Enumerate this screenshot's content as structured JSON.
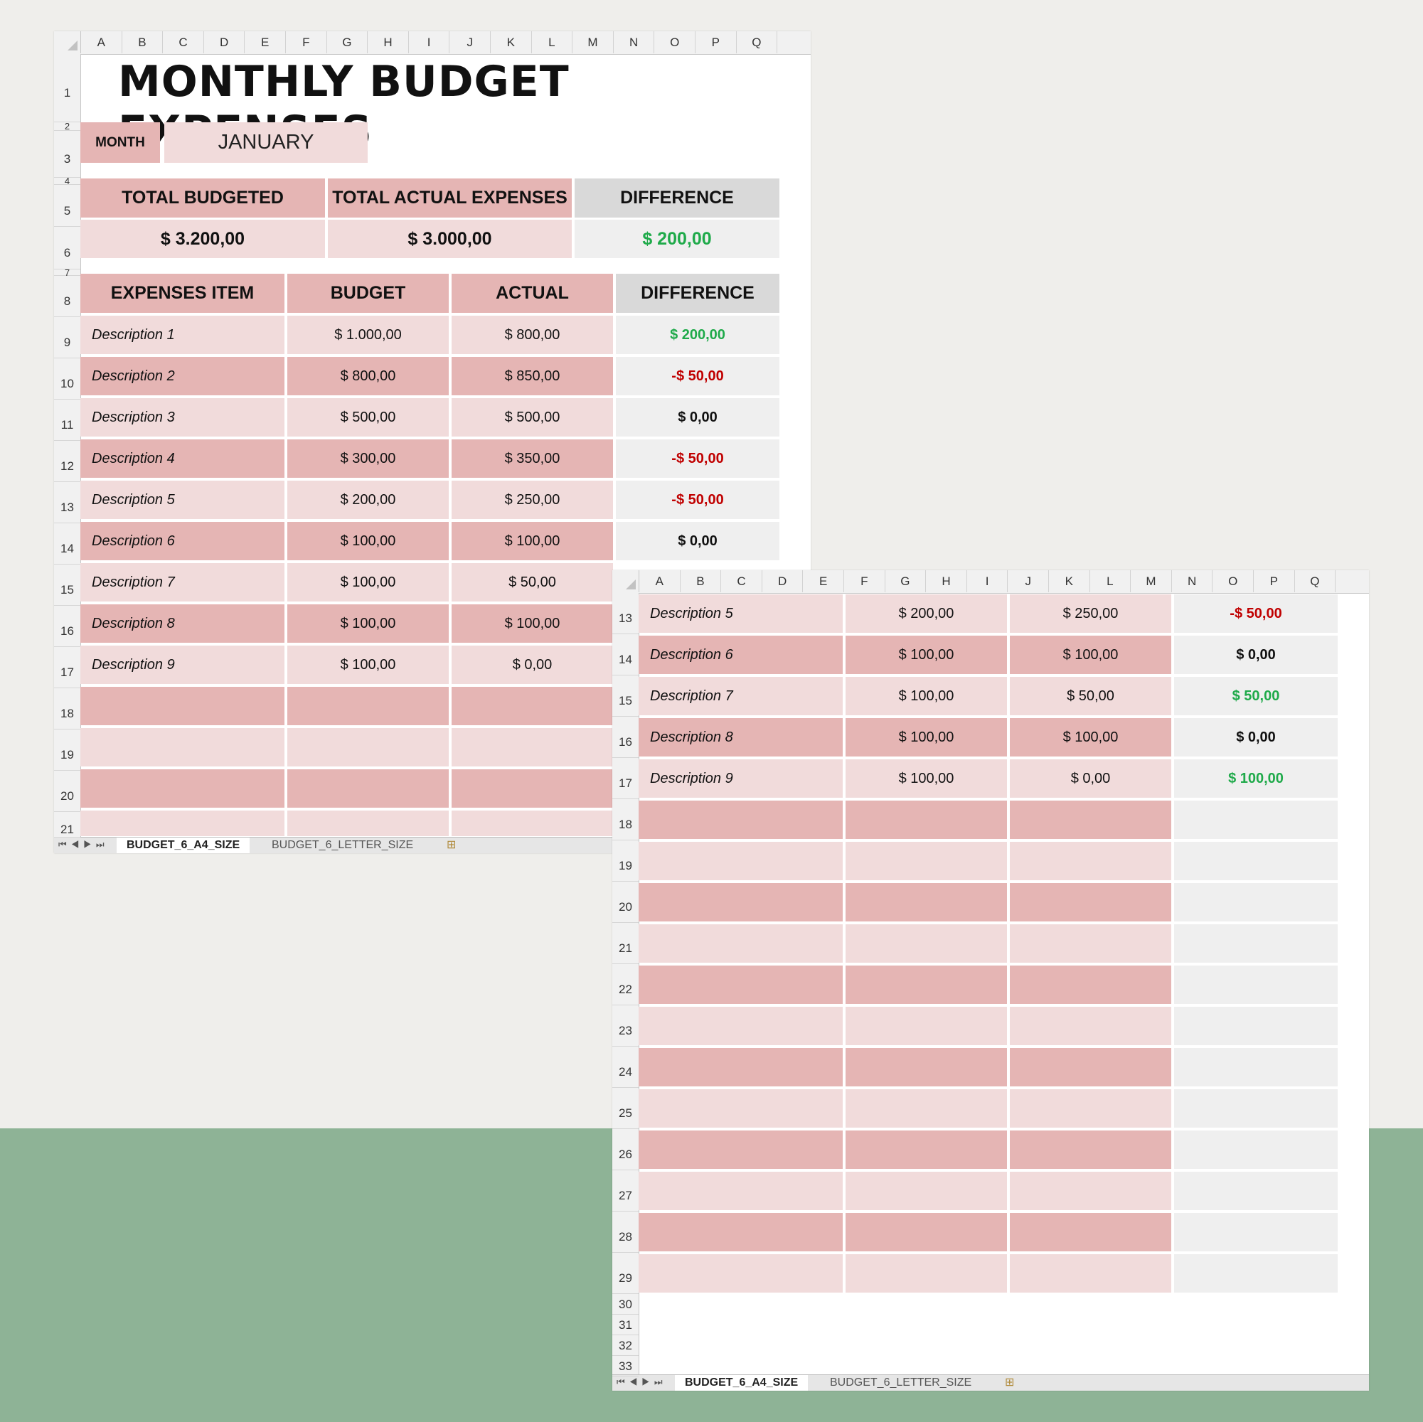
{
  "sheet": {
    "title": "MONTHLY BUDGET EXPENSES",
    "month_label": "MONTH",
    "month_value": "JANUARY",
    "summary": {
      "total_budgeted_label": "TOTAL BUDGETED",
      "total_actual_label": "TOTAL ACTUAL EXPENSES",
      "difference_label": "DIFFERENCE",
      "total_budgeted": "$ 3.200,00",
      "total_actual": "$ 3.000,00",
      "difference": "$ 200,00"
    },
    "table_headers": {
      "item": "EXPENSES ITEM",
      "budget": "BUDGET",
      "actual": "ACTUAL",
      "difference": "DIFFERENCE"
    },
    "rows": [
      {
        "item": "Description 1",
        "budget": "$ 1.000,00",
        "actual": "$ 800,00",
        "difference": "$ 200,00"
      },
      {
        "item": "Description 2",
        "budget": "$ 800,00",
        "actual": "$ 850,00",
        "difference": "-$ 50,00"
      },
      {
        "item": "Description 3",
        "budget": "$ 500,00",
        "actual": "$ 500,00",
        "difference": "$ 0,00"
      },
      {
        "item": "Description 4",
        "budget": "$ 300,00",
        "actual": "$ 350,00",
        "difference": "-$ 50,00"
      },
      {
        "item": "Description 5",
        "budget": "$ 200,00",
        "actual": "$ 250,00",
        "difference": "-$ 50,00"
      },
      {
        "item": "Description 6",
        "budget": "$ 100,00",
        "actual": "$ 100,00",
        "difference": "$ 0,00"
      },
      {
        "item": "Description 7",
        "budget": "$ 100,00",
        "actual": "$ 50,00",
        "difference": "$ 50,00"
      },
      {
        "item": "Description 8",
        "budget": "$ 100,00",
        "actual": "$ 100,00",
        "difference": "$ 0,00"
      },
      {
        "item": "Description 9",
        "budget": "$ 100,00",
        "actual": "$ 0,00",
        "difference": "$ 100,00"
      }
    ]
  },
  "columns": [
    "A",
    "B",
    "C",
    "D",
    "E",
    "F",
    "G",
    "H",
    "I",
    "J",
    "K",
    "L",
    "M",
    "N",
    "O",
    "P",
    "Q"
  ],
  "sheet_tabs": [
    "BUDGET_6_A4_SIZE",
    "BUDGET_6_LETTER_SIZE"
  ],
  "colors": {
    "positive": "#1faa4a",
    "negative": "#c00000",
    "dark_row": "#e5b5b4",
    "light_row": "#f1dbdb",
    "diff_col": "#efefef",
    "background_band": "#8eb396"
  }
}
